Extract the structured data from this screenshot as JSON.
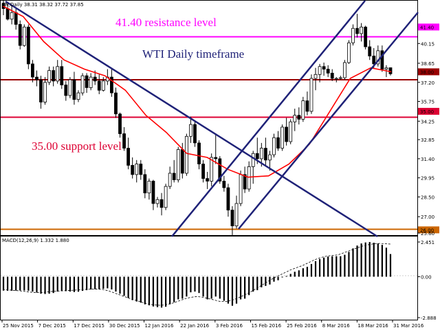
{
  "window": {
    "header": "EN,Daily  38.31 38.32 37.72 37.85"
  },
  "annotations": {
    "resistance_text": "41.40 resistance level",
    "support_text": "35.00 support level",
    "timeframe_text": "WTI Daily timeframe"
  },
  "colors": {
    "resistance": "#ff00ff",
    "support": "#dd0033",
    "current": "#990000",
    "bottom": "#cc6600",
    "trendline": "#1f2278",
    "ma": "#ff0000",
    "candle": "#000000",
    "timeframe_text": "#1f2278"
  },
  "chart_data": [
    {
      "type": "candlestick",
      "symbol": "EN",
      "timeframe": "Daily",
      "header_ohlc": {
        "open": 38.31,
        "high": 38.32,
        "low": 37.72,
        "close": 37.85
      },
      "y_range": [
        25.6,
        43.4
      ],
      "y_ticks": [
        "41.40",
        "40.15",
        "38.65",
        "38.00",
        "37.20",
        "35.75",
        "35.00",
        "34.25",
        "32.85",
        "31.40",
        "29.95",
        "28.50",
        "27.00",
        "26.00",
        "25.60"
      ],
      "x_ticks": [
        "25 Nov 2015",
        "7 Dec 2015",
        "17 Dec 2015",
        "30 Dec 2015",
        "12 Jan 2016",
        "22 Jan 2016",
        "3 Feb 2016",
        "15 Feb 2016",
        "25 Feb 2016",
        "8 Mar 2016",
        "18 Mar 2016",
        "31 Mar 2016"
      ],
      "levels": [
        {
          "label": "41.40",
          "value": 41.4,
          "role": "resistance"
        },
        {
          "label": "38.00",
          "value": 38.0,
          "role": "current"
        },
        {
          "label": "35.00",
          "value": 35.0,
          "role": "support"
        },
        {
          "label": "26.00",
          "value": 26.0,
          "role": "bottom"
        }
      ],
      "ohlc": [
        [
          43.2,
          43.4,
          42.3,
          42.8
        ],
        [
          42.8,
          43.2,
          41.9,
          42.0
        ],
        [
          42.0,
          43.0,
          41.6,
          42.5
        ],
        [
          42.5,
          42.9,
          41.2,
          41.6
        ],
        [
          41.6,
          41.9,
          39.7,
          40.0
        ],
        [
          40.0,
          41.6,
          39.9,
          41.4
        ],
        [
          41.4,
          41.6,
          38.2,
          38.6
        ],
        [
          38.6,
          38.9,
          37.2,
          37.6
        ],
        [
          37.6,
          38.1,
          36.9,
          37.4
        ],
        [
          37.4,
          37.7,
          35.2,
          35.7
        ],
        [
          35.7,
          37.6,
          35.5,
          37.2
        ],
        [
          37.2,
          38.4,
          37.0,
          38.1
        ],
        [
          38.1,
          38.4,
          36.9,
          37.3
        ],
        [
          37.3,
          38.9,
          37.1,
          38.4
        ],
        [
          38.4,
          38.9,
          36.7,
          37.0
        ],
        [
          37.0,
          37.3,
          35.8,
          36.2
        ],
        [
          36.2,
          37.6,
          36.0,
          37.4
        ],
        [
          37.4,
          38.0,
          35.5,
          35.9
        ],
        [
          35.9,
          36.6,
          35.7,
          36.4
        ],
        [
          36.4,
          37.9,
          36.2,
          37.7
        ],
        [
          37.7,
          37.9,
          36.4,
          36.8
        ],
        [
          36.8,
          37.9,
          36.6,
          37.6
        ],
        [
          37.6,
          38.1,
          37.0,
          37.3
        ],
        [
          37.3,
          37.8,
          36.3,
          36.6
        ],
        [
          36.6,
          37.6,
          36.5,
          37.3
        ],
        [
          37.3,
          38.2,
          37.0,
          37.6
        ],
        [
          37.6,
          38.2,
          36.1,
          36.4
        ],
        [
          36.4,
          36.8,
          34.5,
          34.8
        ],
        [
          34.8,
          34.9,
          33.0,
          33.3
        ],
        [
          33.3,
          33.8,
          32.0,
          32.2
        ],
        [
          32.2,
          33.0,
          30.6,
          30.9
        ],
        [
          30.9,
          31.5,
          29.9,
          30.2
        ],
        [
          30.2,
          31.3,
          29.6,
          31.0
        ],
        [
          31.0,
          31.3,
          29.8,
          30.2
        ],
        [
          30.2,
          30.6,
          28.4,
          28.8
        ],
        [
          28.8,
          29.9,
          28.3,
          29.7
        ],
        [
          29.7,
          29.8,
          27.5,
          28.0
        ],
        [
          28.0,
          28.5,
          27.7,
          28.3
        ],
        [
          28.3,
          28.8,
          27.1,
          27.7
        ],
        [
          27.7,
          29.5,
          27.5,
          29.3
        ],
        [
          29.3,
          30.8,
          29.1,
          30.3
        ],
        [
          30.3,
          31.3,
          29.6,
          29.8
        ],
        [
          29.8,
          32.3,
          29.6,
          32.1
        ],
        [
          32.1,
          32.6,
          29.9,
          30.3
        ],
        [
          30.3,
          33.3,
          30.1,
          33.1
        ],
        [
          33.1,
          34.6,
          32.6,
          34.0
        ],
        [
          34.0,
          34.3,
          32.3,
          32.6
        ],
        [
          32.6,
          32.8,
          30.6,
          31.0
        ],
        [
          31.0,
          31.3,
          29.6,
          29.9
        ],
        [
          29.9,
          30.4,
          29.1,
          29.7
        ],
        [
          29.7,
          31.8,
          29.3,
          31.5
        ],
        [
          31.5,
          33.3,
          31.0,
          31.4
        ],
        [
          31.4,
          31.6,
          29.5,
          29.7
        ],
        [
          29.7,
          30.1,
          28.9,
          29.2
        ],
        [
          29.2,
          29.5,
          27.0,
          27.5
        ],
        [
          27.5,
          27.8,
          25.6,
          26.3
        ],
        [
          26.3,
          28.6,
          26.1,
          28.0
        ],
        [
          28.0,
          30.5,
          27.8,
          30.2
        ],
        [
          30.2,
          30.8,
          28.8,
          29.1
        ],
        [
          29.1,
          31.2,
          28.9,
          30.8
        ],
        [
          30.8,
          32.0,
          29.5,
          31.8
        ],
        [
          31.8,
          33.0,
          31.0,
          31.4
        ],
        [
          31.4,
          32.6,
          30.8,
          32.2
        ],
        [
          32.2,
          33.0,
          30.9,
          31.3
        ],
        [
          31.3,
          32.0,
          30.5,
          31.7
        ],
        [
          31.7,
          33.3,
          31.5,
          33.0
        ],
        [
          33.0,
          33.5,
          32.0,
          32.2
        ],
        [
          32.2,
          34.0,
          32.0,
          33.8
        ],
        [
          33.8,
          34.5,
          32.4,
          32.7
        ],
        [
          32.7,
          34.4,
          32.5,
          34.2
        ],
        [
          34.2,
          35.2,
          33.5,
          34.7
        ],
        [
          34.7,
          35.3,
          34.0,
          34.4
        ],
        [
          34.4,
          36.1,
          34.2,
          35.8
        ],
        [
          35.8,
          36.5,
          34.7,
          35.0
        ],
        [
          35.0,
          37.8,
          34.8,
          37.5
        ],
        [
          37.5,
          38.3,
          36.6,
          37.8
        ],
        [
          37.8,
          38.6,
          37.2,
          38.4
        ],
        [
          38.4,
          38.7,
          37.7,
          38.2
        ],
        [
          38.2,
          38.5,
          37.6,
          37.9
        ],
        [
          37.9,
          38.2,
          37.3,
          37.5
        ],
        [
          37.5,
          37.6,
          37.2,
          37.5
        ],
        [
          37.5,
          37.7,
          37.4,
          37.55
        ],
        [
          37.55,
          38.9,
          37.4,
          38.7
        ],
        [
          38.7,
          40.4,
          38.6,
          40.2
        ],
        [
          40.2,
          41.6,
          40.0,
          41.3
        ],
        [
          41.3,
          42.4,
          40.6,
          40.9
        ],
        [
          40.9,
          41.7,
          40.3,
          41.4
        ],
        [
          41.4,
          41.5,
          39.7,
          39.9
        ],
        [
          39.9,
          40.4,
          38.9,
          39.2
        ],
        [
          39.2,
          39.8,
          38.3,
          38.6
        ],
        [
          38.6,
          40.0,
          38.4,
          39.6
        ],
        [
          39.6,
          40.0,
          38.0,
          38.2
        ],
        [
          38.2,
          38.5,
          37.6,
          38.3
        ],
        [
          38.31,
          38.32,
          37.72,
          37.85
        ]
      ],
      "moving_average_line": [
        43.0,
        42.2,
        40.3,
        38.9,
        38.2,
        37.7,
        36.6,
        34.7,
        33.4,
        31.8,
        31.5,
        30.6,
        30.0,
        30.1,
        31.0,
        32.5,
        35.0,
        37.5,
        38.3,
        38.0
      ]
    },
    {
      "type": "histogram",
      "indicator": "MACD(12,26,9)",
      "title": "MACD(12,26,9) 1.332 1.880",
      "values_shown": {
        "macd": 1.332,
        "signal": 1.88
      },
      "y_ticks": [
        "2.451",
        "0.00",
        "-2.888"
      ],
      "y_range": [
        -2.888,
        2.451
      ],
      "histogram": [
        -0.98,
        -0.99,
        -0.99,
        -0.98,
        -0.97,
        -0.97,
        -0.99,
        -1.05,
        -1.12,
        -1.2,
        -1.22,
        -1.2,
        -1.15,
        -1.05,
        -1.02,
        -1.02,
        -1.05,
        -1.08,
        -1.06,
        -1.0,
        -0.95,
        -0.9,
        -0.88,
        -0.88,
        -0.85,
        -0.82,
        -0.9,
        -1.05,
        -1.2,
        -1.35,
        -1.5,
        -1.65,
        -1.75,
        -1.83,
        -1.95,
        -2.02,
        -2.1,
        -2.15,
        -2.18,
        -2.12,
        -1.95,
        -1.8,
        -1.6,
        -1.55,
        -1.4,
        -1.1,
        -1.05,
        -1.15,
        -1.4,
        -1.6,
        -1.55,
        -1.4,
        -1.55,
        -1.7,
        -1.9,
        -2.05,
        -1.9,
        -1.6,
        -1.55,
        -1.3,
        -1.05,
        -0.95,
        -0.75,
        -0.65,
        -0.55,
        -0.35,
        -0.25,
        -0.05,
        0.05,
        0.2,
        0.35,
        0.45,
        0.6,
        0.7,
        0.9,
        1.1,
        1.25,
        1.35,
        1.42,
        1.45,
        1.45,
        1.45,
        1.55,
        1.75,
        2.0,
        2.2,
        2.35,
        2.42,
        2.45,
        2.4,
        2.35,
        2.25,
        2.05,
        1.6
      ],
      "signal_line": [
        -0.9,
        -0.93,
        -0.97,
        -1.0,
        -1.05,
        -1.1,
        -1.12,
        -1.1,
        -1.05,
        -1.02,
        -1.0,
        -0.98,
        -0.95,
        -0.92,
        -0.9,
        -0.88,
        -0.87,
        -0.9,
        -1.0,
        -1.15,
        -1.3,
        -1.45,
        -1.6,
        -1.72,
        -1.85,
        -1.95,
        -2.0,
        -2.02,
        -1.95,
        -1.85,
        -1.7,
        -1.55,
        -1.45,
        -1.4,
        -1.45,
        -1.55,
        -1.65,
        -1.75,
        -1.75,
        -1.65,
        -1.5,
        -1.3,
        -1.1,
        -0.85,
        -0.6,
        -0.35,
        -0.1,
        0.1,
        0.3,
        0.5,
        0.65,
        0.8,
        1.0,
        1.2,
        1.35,
        1.45,
        1.5,
        1.55,
        1.7,
        1.85,
        2.0,
        2.15,
        2.25,
        2.32,
        2.35,
        2.33,
        2.3
      ]
    }
  ]
}
